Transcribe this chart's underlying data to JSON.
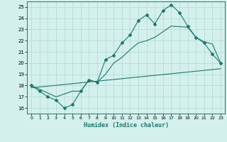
{
  "line1_x": [
    0,
    1,
    2,
    3,
    4,
    5,
    6,
    7,
    8,
    9,
    10,
    11,
    12,
    13,
    14,
    15,
    16,
    17,
    18,
    19,
    20,
    21,
    22,
    23
  ],
  "line1_y": [
    18.0,
    17.5,
    17.0,
    16.7,
    16.0,
    16.3,
    17.5,
    18.5,
    18.3,
    20.3,
    20.7,
    21.8,
    22.5,
    23.8,
    24.3,
    23.5,
    24.7,
    25.2,
    24.5,
    23.3,
    22.3,
    21.8,
    20.8,
    20.0
  ],
  "line2_x": [
    0,
    3,
    5,
    6,
    7,
    8,
    9,
    10,
    11,
    12,
    13,
    14,
    15,
    16,
    17,
    19,
    20,
    21,
    22,
    23
  ],
  "line2_y": [
    18.0,
    17.0,
    17.5,
    17.5,
    18.5,
    18.3,
    19.0,
    20.0,
    20.5,
    21.2,
    21.8,
    22.0,
    22.3,
    22.8,
    23.3,
    23.2,
    22.3,
    21.9,
    21.7,
    20.0
  ],
  "line3_x": [
    0,
    23
  ],
  "line3_y": [
    17.8,
    19.5
  ],
  "color": "#1a7a6e",
  "bg_color": "#d4f0ec",
  "grid_color": "#b0d8d3",
  "xlabel": "Humidex (Indice chaleur)",
  "ylim": [
    15.5,
    25.5
  ],
  "xlim": [
    -0.5,
    23.5
  ],
  "yticks": [
    16,
    17,
    18,
    19,
    20,
    21,
    22,
    23,
    24,
    25
  ],
  "xticks": [
    0,
    1,
    2,
    3,
    4,
    5,
    6,
    7,
    8,
    9,
    10,
    11,
    12,
    13,
    14,
    15,
    16,
    17,
    18,
    19,
    20,
    21,
    22,
    23
  ]
}
